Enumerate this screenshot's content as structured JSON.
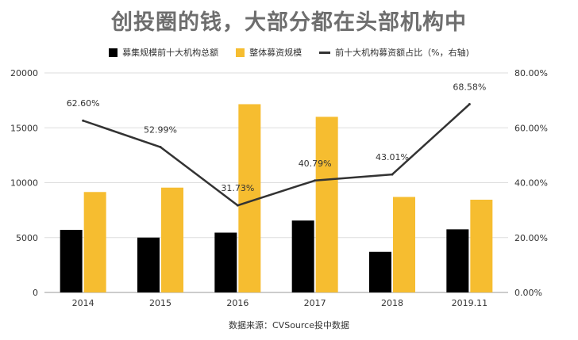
{
  "title": "创投圈的钱，大部分都在头部机构中",
  "source": "数据来源：CVSource投中数据",
  "colors": {
    "black_bar": "#000000",
    "yellow_bar": "#f6bd30",
    "line": "#333333",
    "grid": "#dddddd"
  },
  "chart_data": {
    "type": "bar",
    "categories": [
      "2014",
      "2015",
      "2016",
      "2017",
      "2018",
      "2019.11"
    ],
    "series": [
      {
        "name": "募集规模前十大机构总额",
        "kind": "bar",
        "axis": "left",
        "values": [
          5700,
          5000,
          5450,
          6550,
          3700,
          5750
        ]
      },
      {
        "name": "整体募资规模",
        "kind": "bar",
        "axis": "left",
        "values": [
          9150,
          9550,
          17150,
          16000,
          8700,
          8450
        ]
      },
      {
        "name": "前十大机构募资额占比（%，右轴)",
        "kind": "line",
        "axis": "right",
        "values": [
          62.6,
          52.99,
          31.73,
          40.79,
          43.01,
          68.58
        ]
      }
    ],
    "line_labels": [
      "62.60%",
      "52.99%",
      "31.73%",
      "40.79%",
      "43.01%",
      "68.58%"
    ],
    "left_axis": {
      "ylim": [
        0,
        20000
      ],
      "ticks": [
        0,
        5000,
        10000,
        15000,
        20000
      ],
      "tick_labels": [
        "0",
        "5000",
        "10000",
        "15000",
        "20000"
      ]
    },
    "right_axis": {
      "ylim": [
        0,
        80
      ],
      "ticks": [
        0,
        20,
        40,
        60,
        80
      ],
      "tick_labels": [
        "0.00%",
        "20.00%",
        "40.00%",
        "60.00%",
        "80.00%"
      ]
    },
    "grid": true,
    "legend_position": "top"
  }
}
